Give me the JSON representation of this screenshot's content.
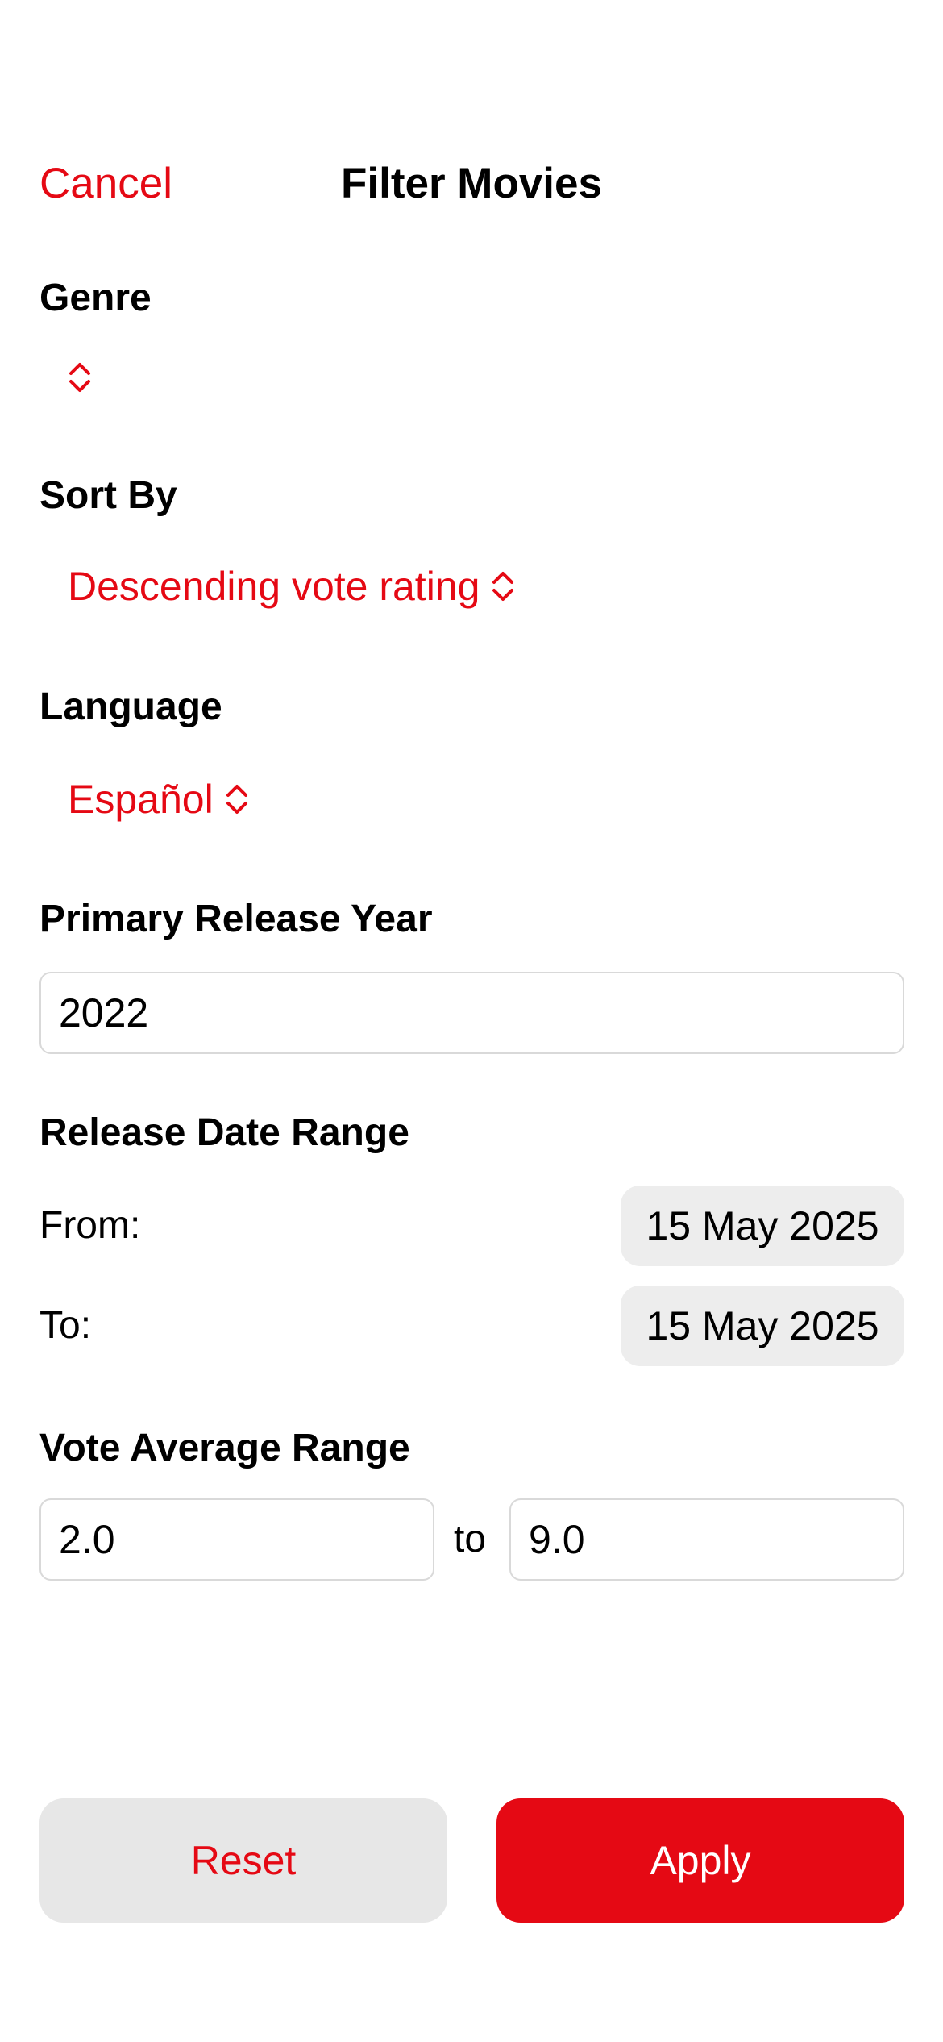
{
  "header": {
    "cancel_label": "Cancel",
    "title": "Filter Movies"
  },
  "genre": {
    "label": "Genre",
    "selected": "",
    "icon": "chevron-up-down-icon"
  },
  "sort_by": {
    "label": "Sort By",
    "selected": "Descending vote rating",
    "icon": "chevron-up-down-icon"
  },
  "language": {
    "label": "Language",
    "selected": "Español",
    "icon": "chevron-up-down-icon"
  },
  "release_year": {
    "label": "Primary Release Year",
    "value": "2022"
  },
  "release_date_range": {
    "label": "Release Date Range",
    "from_label": "From:",
    "from_value": "15 May 2025",
    "to_label": "To:",
    "to_value": "15 May 2025"
  },
  "vote_average": {
    "label": "Vote Average Range",
    "min_value": "2.0",
    "separator": "to",
    "max_value": "9.0"
  },
  "actions": {
    "reset_label": "Reset",
    "apply_label": "Apply"
  },
  "colors": {
    "accent": "#E50914",
    "pill_background": "#EDEDED",
    "secondary_button": "#E7E7E7"
  }
}
